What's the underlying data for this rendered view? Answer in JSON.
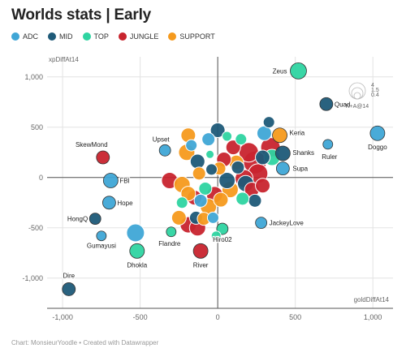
{
  "title": "Worlds stats | Early",
  "footer": "Chart: MonsieurYoodle • Created with Datawrapper",
  "chart_data": {
    "type": "scatter",
    "title": "Worlds stats | Early",
    "xlabel": "goldDiffAt14",
    "ylabel": "xpDiffAt14",
    "xlim": [
      -1100,
      1130
    ],
    "ylim": [
      -1300,
      1200
    ],
    "xticks": [
      -1000,
      -500,
      0,
      500,
      1000
    ],
    "xtick_labels": [
      "-1,000",
      "-500",
      "0",
      "500",
      "1,000"
    ],
    "yticks": [
      1000,
      500,
      0,
      -500,
      -1000
    ],
    "ytick_labels": [
      "1,000",
      "500",
      "0",
      "-500",
      "-1,000"
    ],
    "grid": true,
    "legend_position": "top-left",
    "size_legend": {
      "title": "K+A@14",
      "values": [
        "4",
        "1.5",
        "0.4"
      ]
    },
    "colors": {
      "ADC": "#3fa6d6",
      "MID": "#1e5a78",
      "TOP": "#2ed4a1",
      "JUNGLE": "#c8242e",
      "SUPPORT": "#f59a1d"
    },
    "series": [
      {
        "name": "ADC",
        "color": "#3fa6d6"
      },
      {
        "name": "MID",
        "color": "#1e5a78"
      },
      {
        "name": "TOP",
        "color": "#2ed4a1"
      },
      {
        "name": "JUNGLE",
        "color": "#c8242e"
      },
      {
        "name": "SUPPORT",
        "color": "#f59a1d"
      }
    ],
    "points": [
      {
        "label": "Zeus",
        "role": "TOP",
        "x": 520,
        "y": 1060,
        "r": 10
      },
      {
        "label": "Quad",
        "role": "MID",
        "x": 700,
        "y": 730,
        "r": 8
      },
      {
        "label": "Doggo",
        "role": "ADC",
        "x": 1030,
        "y": 440,
        "r": 9
      },
      {
        "label": "Ruler",
        "role": "ADC",
        "x": 710,
        "y": 330,
        "r": 6
      },
      {
        "label": "Keria",
        "role": "SUPPORT",
        "x": 400,
        "y": 420,
        "r": 9
      },
      {
        "label": "Shanks",
        "role": "MID",
        "x": 420,
        "y": 240,
        "r": 9
      },
      {
        "label": "Supa",
        "role": "ADC",
        "x": 420,
        "y": 90,
        "r": 8
      },
      {
        "label": "JackeyLove",
        "role": "ADC",
        "x": 280,
        "y": -450,
        "r": 7
      },
      {
        "label": "Hiro02",
        "role": "TOP",
        "x": 30,
        "y": -510,
        "r": 7
      },
      {
        "label": "River",
        "role": "JUNGLE",
        "x": -110,
        "y": -730,
        "r": 9
      },
      {
        "label": "Flandre",
        "role": "TOP",
        "x": -300,
        "y": -540,
        "r": 6
      },
      {
        "label": "Upset",
        "role": "ADC",
        "x": -340,
        "y": 270,
        "r": 7
      },
      {
        "label": "SkewMond",
        "role": "JUNGLE",
        "x": -740,
        "y": 200,
        "r": 8
      },
      {
        "label": "FBI",
        "role": "ADC",
        "x": -690,
        "y": -30,
        "r": 9
      },
      {
        "label": "Hope",
        "role": "ADC",
        "x": -700,
        "y": -250,
        "r": 8
      },
      {
        "label": "HongQ",
        "role": "MID",
        "x": -790,
        "y": -410,
        "r": 7
      },
      {
        "label": "Gumayusi",
        "role": "ADC",
        "x": -750,
        "y": -580,
        "r": 6
      },
      {
        "label": "Dhokla",
        "role": "TOP",
        "x": -520,
        "y": -730,
        "r": 9
      },
      {
        "label": "Dire",
        "role": "MID",
        "x": -960,
        "y": -1110,
        "r": 8
      },
      {
        "label": "",
        "role": "ADC",
        "x": -530,
        "y": -550,
        "r": 11
      },
      {
        "label": "",
        "role": "JUNGLE",
        "x": -310,
        "y": -30,
        "r": 10
      },
      {
        "label": "",
        "role": "SUPPORT",
        "x": -190,
        "y": 420,
        "r": 9
      },
      {
        "label": "",
        "role": "SUPPORT",
        "x": -200,
        "y": 250,
        "r": 10
      },
      {
        "label": "",
        "role": "MID",
        "x": -130,
        "y": 160,
        "r": 9
      },
      {
        "label": "",
        "role": "SUPPORT",
        "x": -120,
        "y": 40,
        "r": 8
      },
      {
        "label": "",
        "role": "ADC",
        "x": -60,
        "y": 380,
        "r": 8
      },
      {
        "label": "",
        "role": "MID",
        "x": 0,
        "y": 470,
        "r": 9
      },
      {
        "label": "",
        "role": "TOP",
        "x": 60,
        "y": 410,
        "r": 6
      },
      {
        "label": "",
        "role": "JUNGLE",
        "x": 100,
        "y": 300,
        "r": 9
      },
      {
        "label": "",
        "role": "SUPPORT",
        "x": 120,
        "y": 150,
        "r": 9
      },
      {
        "label": "",
        "role": "JUNGLE",
        "x": 200,
        "y": 250,
        "r": 12
      },
      {
        "label": "",
        "role": "JUNGLE",
        "x": 240,
        "y": 150,
        "r": 14
      },
      {
        "label": "",
        "role": "JUNGLE",
        "x": 260,
        "y": 40,
        "r": 12
      },
      {
        "label": "",
        "role": "ADC",
        "x": 300,
        "y": 440,
        "r": 9
      },
      {
        "label": "",
        "role": "JUNGLE",
        "x": 340,
        "y": 300,
        "r": 12
      },
      {
        "label": "",
        "role": "MID",
        "x": 290,
        "y": 200,
        "r": 9
      },
      {
        "label": "",
        "role": "TOP",
        "x": 350,
        "y": 200,
        "r": 10
      },
      {
        "label": "",
        "role": "TOP",
        "x": 150,
        "y": 380,
        "r": 7
      },
      {
        "label": "",
        "role": "MID",
        "x": 330,
        "y": 550,
        "r": 7
      },
      {
        "label": "",
        "role": "MID",
        "x": 180,
        "y": -60,
        "r": 10
      },
      {
        "label": "",
        "role": "JUNGLE",
        "x": 220,
        "y": -120,
        "r": 9
      },
      {
        "label": "",
        "role": "MID",
        "x": 240,
        "y": -230,
        "r": 8
      },
      {
        "label": "",
        "role": "TOP",
        "x": 160,
        "y": -210,
        "r": 8
      },
      {
        "label": "",
        "role": "JUNGLE",
        "x": 170,
        "y": -10,
        "r": 11
      },
      {
        "label": "",
        "role": "SUPPORT",
        "x": 80,
        "y": -120,
        "r": 10
      },
      {
        "label": "",
        "role": "MID",
        "x": 60,
        "y": -30,
        "r": 10
      },
      {
        "label": "",
        "role": "SUPPORT",
        "x": 20,
        "y": -220,
        "r": 9
      },
      {
        "label": "",
        "role": "JUNGLE",
        "x": -20,
        "y": -170,
        "r": 10
      },
      {
        "label": "",
        "role": "SUPPORT",
        "x": -60,
        "y": -290,
        "r": 10
      },
      {
        "label": "",
        "role": "TOP",
        "x": -80,
        "y": -110,
        "r": 8
      },
      {
        "label": "",
        "role": "ADC",
        "x": -110,
        "y": -230,
        "r": 8
      },
      {
        "label": "",
        "role": "MID",
        "x": -140,
        "y": -400,
        "r": 8
      },
      {
        "label": "",
        "role": "JUNGLE",
        "x": -150,
        "y": -200,
        "r": 9
      },
      {
        "label": "",
        "role": "SUPPORT",
        "x": -190,
        "y": -160,
        "r": 9
      },
      {
        "label": "",
        "role": "SUPPORT",
        "x": -230,
        "y": -70,
        "r": 10
      },
      {
        "label": "",
        "role": "JUNGLE",
        "x": -190,
        "y": -470,
        "r": 10
      },
      {
        "label": "",
        "role": "JUNGLE",
        "x": -130,
        "y": -500,
        "r": 10
      },
      {
        "label": "",
        "role": "SUPPORT",
        "x": -250,
        "y": -400,
        "r": 9
      },
      {
        "label": "",
        "role": "TOP",
        "x": -230,
        "y": -250,
        "r": 7
      },
      {
        "label": "",
        "role": "SUPPORT",
        "x": -90,
        "y": -410,
        "r": 8
      },
      {
        "label": "",
        "role": "ADC",
        "x": -30,
        "y": -400,
        "r": 7
      },
      {
        "label": "",
        "role": "TOP",
        "x": -10,
        "y": -580,
        "r": 6
      },
      {
        "label": "",
        "role": "MID",
        "x": -40,
        "y": 80,
        "r": 7
      },
      {
        "label": "",
        "role": "SUPPORT",
        "x": 10,
        "y": 90,
        "r": 8
      },
      {
        "label": "",
        "role": "TOP",
        "x": -50,
        "y": 230,
        "r": 5
      },
      {
        "label": "",
        "role": "JUNGLE",
        "x": 40,
        "y": 180,
        "r": 9
      },
      {
        "label": "",
        "role": "ADC",
        "x": -170,
        "y": 320,
        "r": 7
      },
      {
        "label": "",
        "role": "JUNGLE",
        "x": 290,
        "y": -80,
        "r": 9
      },
      {
        "label": "",
        "role": "MID",
        "x": 130,
        "y": 100,
        "r": 8
      }
    ]
  }
}
